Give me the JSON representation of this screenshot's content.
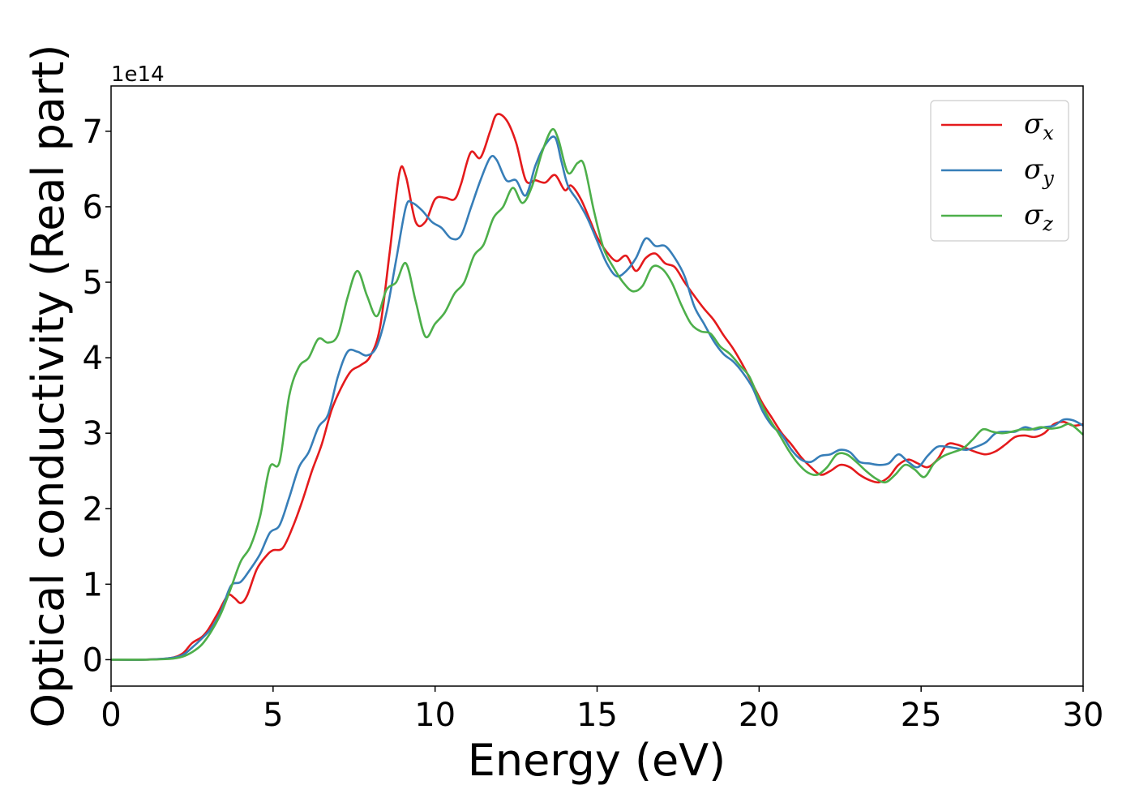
{
  "chart_data": {
    "type": "line",
    "xlabel": "Energy (eV)",
    "ylabel": "Optical conductivity (Real part)",
    "y_offset_label": "1e14",
    "xlim": [
      0,
      30
    ],
    "ylim": [
      -0.35,
      7.6
    ],
    "y_scale_factor": 100000000000000.0,
    "xticks": [
      0,
      5,
      10,
      15,
      20,
      25,
      30
    ],
    "yticks": [
      0,
      1,
      2,
      3,
      4,
      5,
      6,
      7
    ],
    "grid": false,
    "legend_position": "top-right",
    "series": [
      {
        "name": "σx",
        "symbol": "σ",
        "subscript": "x",
        "color": "#e41a1c",
        "points": [
          [
            0,
            0
          ],
          [
            1,
            0.0
          ],
          [
            1.8,
            0.02
          ],
          [
            2.2,
            0.08
          ],
          [
            2.5,
            0.22
          ],
          [
            2.8,
            0.3
          ],
          [
            3.0,
            0.4
          ],
          [
            3.3,
            0.62
          ],
          [
            3.6,
            0.85
          ],
          [
            3.8,
            0.82
          ],
          [
            4.0,
            0.75
          ],
          [
            4.2,
            0.85
          ],
          [
            4.5,
            1.2
          ],
          [
            4.8,
            1.38
          ],
          [
            5.0,
            1.45
          ],
          [
            5.3,
            1.48
          ],
          [
            5.6,
            1.75
          ],
          [
            5.9,
            2.1
          ],
          [
            6.2,
            2.5
          ],
          [
            6.5,
            2.85
          ],
          [
            6.8,
            3.3
          ],
          [
            7.1,
            3.6
          ],
          [
            7.4,
            3.82
          ],
          [
            7.7,
            3.9
          ],
          [
            8.0,
            4.02
          ],
          [
            8.3,
            4.4
          ],
          [
            8.6,
            5.4
          ],
          [
            8.9,
            6.45
          ],
          [
            9.1,
            6.4
          ],
          [
            9.4,
            5.8
          ],
          [
            9.7,
            5.8
          ],
          [
            10.0,
            6.1
          ],
          [
            10.3,
            6.12
          ],
          [
            10.6,
            6.1
          ],
          [
            10.8,
            6.3
          ],
          [
            11.1,
            6.72
          ],
          [
            11.4,
            6.65
          ],
          [
            11.7,
            7.0
          ],
          [
            11.9,
            7.22
          ],
          [
            12.2,
            7.15
          ],
          [
            12.5,
            6.85
          ],
          [
            12.8,
            6.35
          ],
          [
            13.1,
            6.35
          ],
          [
            13.4,
            6.32
          ],
          [
            13.7,
            6.42
          ],
          [
            14.0,
            6.22
          ],
          [
            14.2,
            6.28
          ],
          [
            14.5,
            6.1
          ],
          [
            14.8,
            5.8
          ],
          [
            15.0,
            5.6
          ],
          [
            15.3,
            5.4
          ],
          [
            15.6,
            5.28
          ],
          [
            15.9,
            5.35
          ],
          [
            16.2,
            5.15
          ],
          [
            16.5,
            5.32
          ],
          [
            16.8,
            5.38
          ],
          [
            17.1,
            5.25
          ],
          [
            17.4,
            5.2
          ],
          [
            17.7,
            5.0
          ],
          [
            18.0,
            4.82
          ],
          [
            18.3,
            4.65
          ],
          [
            18.6,
            4.5
          ],
          [
            18.9,
            4.3
          ],
          [
            19.2,
            4.12
          ],
          [
            19.5,
            3.9
          ],
          [
            19.8,
            3.65
          ],
          [
            20.1,
            3.4
          ],
          [
            20.4,
            3.2
          ],
          [
            20.7,
            3.0
          ],
          [
            21.0,
            2.85
          ],
          [
            21.3,
            2.68
          ],
          [
            21.6,
            2.55
          ],
          [
            21.9,
            2.45
          ],
          [
            22.2,
            2.5
          ],
          [
            22.5,
            2.58
          ],
          [
            22.8,
            2.55
          ],
          [
            23.1,
            2.45
          ],
          [
            23.4,
            2.38
          ],
          [
            23.7,
            2.35
          ],
          [
            24.0,
            2.42
          ],
          [
            24.3,
            2.58
          ],
          [
            24.6,
            2.65
          ],
          [
            24.9,
            2.6
          ],
          [
            25.2,
            2.55
          ],
          [
            25.5,
            2.65
          ],
          [
            25.8,
            2.85
          ],
          [
            26.1,
            2.85
          ],
          [
            26.4,
            2.8
          ],
          [
            26.7,
            2.75
          ],
          [
            27.0,
            2.72
          ],
          [
            27.3,
            2.76
          ],
          [
            27.6,
            2.85
          ],
          [
            27.9,
            2.95
          ],
          [
            28.2,
            2.97
          ],
          [
            28.5,
            2.95
          ],
          [
            28.8,
            3.0
          ],
          [
            29.1,
            3.12
          ],
          [
            29.4,
            3.15
          ],
          [
            29.7,
            3.1
          ],
          [
            30,
            3.12
          ]
        ]
      },
      {
        "name": "σy",
        "symbol": "σ",
        "subscript": "y",
        "color": "#377eb8",
        "points": [
          [
            0,
            0
          ],
          [
            1,
            0.0
          ],
          [
            1.8,
            0.02
          ],
          [
            2.2,
            0.06
          ],
          [
            2.5,
            0.16
          ],
          [
            2.8,
            0.28
          ],
          [
            3.1,
            0.42
          ],
          [
            3.4,
            0.65
          ],
          [
            3.7,
            0.98
          ],
          [
            4.0,
            1.03
          ],
          [
            4.3,
            1.2
          ],
          [
            4.6,
            1.4
          ],
          [
            4.9,
            1.68
          ],
          [
            5.2,
            1.78
          ],
          [
            5.5,
            2.15
          ],
          [
            5.8,
            2.55
          ],
          [
            6.1,
            2.75
          ],
          [
            6.4,
            3.08
          ],
          [
            6.7,
            3.25
          ],
          [
            7.0,
            3.75
          ],
          [
            7.3,
            4.08
          ],
          [
            7.6,
            4.08
          ],
          [
            7.9,
            4.03
          ],
          [
            8.2,
            4.15
          ],
          [
            8.5,
            4.6
          ],
          [
            8.8,
            5.3
          ],
          [
            9.1,
            6.0
          ],
          [
            9.3,
            6.05
          ],
          [
            9.6,
            5.95
          ],
          [
            9.9,
            5.8
          ],
          [
            10.2,
            5.72
          ],
          [
            10.5,
            5.58
          ],
          [
            10.8,
            5.62
          ],
          [
            11.1,
            5.98
          ],
          [
            11.4,
            6.35
          ],
          [
            11.7,
            6.65
          ],
          [
            11.9,
            6.62
          ],
          [
            12.2,
            6.35
          ],
          [
            12.5,
            6.35
          ],
          [
            12.8,
            6.15
          ],
          [
            13.1,
            6.55
          ],
          [
            13.4,
            6.82
          ],
          [
            13.7,
            6.92
          ],
          [
            13.9,
            6.6
          ],
          [
            14.1,
            6.28
          ],
          [
            14.4,
            6.08
          ],
          [
            14.7,
            5.85
          ],
          [
            15.0,
            5.55
          ],
          [
            15.3,
            5.25
          ],
          [
            15.6,
            5.08
          ],
          [
            15.9,
            5.15
          ],
          [
            16.2,
            5.32
          ],
          [
            16.5,
            5.58
          ],
          [
            16.8,
            5.48
          ],
          [
            17.1,
            5.48
          ],
          [
            17.4,
            5.32
          ],
          [
            17.7,
            5.08
          ],
          [
            18.0,
            4.68
          ],
          [
            18.3,
            4.45
          ],
          [
            18.6,
            4.22
          ],
          [
            18.9,
            4.05
          ],
          [
            19.2,
            3.95
          ],
          [
            19.5,
            3.8
          ],
          [
            19.8,
            3.6
          ],
          [
            20.1,
            3.3
          ],
          [
            20.4,
            3.1
          ],
          [
            20.7,
            2.98
          ],
          [
            21.0,
            2.78
          ],
          [
            21.3,
            2.65
          ],
          [
            21.6,
            2.62
          ],
          [
            21.9,
            2.7
          ],
          [
            22.2,
            2.72
          ],
          [
            22.5,
            2.78
          ],
          [
            22.8,
            2.75
          ],
          [
            23.1,
            2.62
          ],
          [
            23.4,
            2.6
          ],
          [
            23.7,
            2.58
          ],
          [
            24.0,
            2.6
          ],
          [
            24.3,
            2.72
          ],
          [
            24.6,
            2.62
          ],
          [
            24.9,
            2.55
          ],
          [
            25.2,
            2.7
          ],
          [
            25.5,
            2.82
          ],
          [
            25.8,
            2.82
          ],
          [
            26.1,
            2.8
          ],
          [
            26.4,
            2.78
          ],
          [
            26.7,
            2.82
          ],
          [
            27.0,
            2.88
          ],
          [
            27.3,
            3.0
          ],
          [
            27.6,
            3.02
          ],
          [
            27.9,
            3.02
          ],
          [
            28.2,
            3.08
          ],
          [
            28.5,
            3.05
          ],
          [
            28.8,
            3.08
          ],
          [
            29.1,
            3.1
          ],
          [
            29.4,
            3.18
          ],
          [
            29.7,
            3.17
          ],
          [
            30,
            3.1
          ]
        ]
      },
      {
        "name": "σz",
        "symbol": "σ",
        "subscript": "z",
        "color": "#4daf4a",
        "points": [
          [
            0,
            0
          ],
          [
            1,
            0.0
          ],
          [
            1.8,
            0.01
          ],
          [
            2.2,
            0.04
          ],
          [
            2.5,
            0.1
          ],
          [
            2.8,
            0.2
          ],
          [
            3.1,
            0.38
          ],
          [
            3.4,
            0.62
          ],
          [
            3.7,
            0.95
          ],
          [
            4.0,
            1.3
          ],
          [
            4.3,
            1.5
          ],
          [
            4.6,
            1.9
          ],
          [
            4.9,
            2.55
          ],
          [
            5.2,
            2.62
          ],
          [
            5.5,
            3.5
          ],
          [
            5.8,
            3.88
          ],
          [
            6.1,
            4.0
          ],
          [
            6.4,
            4.25
          ],
          [
            6.7,
            4.2
          ],
          [
            7.0,
            4.3
          ],
          [
            7.3,
            4.8
          ],
          [
            7.6,
            5.15
          ],
          [
            7.9,
            4.82
          ],
          [
            8.2,
            4.55
          ],
          [
            8.5,
            4.9
          ],
          [
            8.8,
            5.0
          ],
          [
            9.1,
            5.25
          ],
          [
            9.4,
            4.75
          ],
          [
            9.7,
            4.28
          ],
          [
            10.0,
            4.45
          ],
          [
            10.3,
            4.6
          ],
          [
            10.6,
            4.85
          ],
          [
            10.9,
            5.0
          ],
          [
            11.2,
            5.35
          ],
          [
            11.5,
            5.5
          ],
          [
            11.8,
            5.85
          ],
          [
            12.1,
            6.0
          ],
          [
            12.4,
            6.25
          ],
          [
            12.7,
            6.05
          ],
          [
            13.0,
            6.28
          ],
          [
            13.3,
            6.72
          ],
          [
            13.6,
            7.02
          ],
          [
            13.8,
            6.9
          ],
          [
            14.1,
            6.45
          ],
          [
            14.4,
            6.58
          ],
          [
            14.6,
            6.55
          ],
          [
            14.9,
            5.95
          ],
          [
            15.2,
            5.45
          ],
          [
            15.5,
            5.2
          ],
          [
            15.8,
            5.0
          ],
          [
            16.1,
            4.88
          ],
          [
            16.4,
            4.95
          ],
          [
            16.7,
            5.2
          ],
          [
            17.0,
            5.18
          ],
          [
            17.3,
            5.0
          ],
          [
            17.6,
            4.7
          ],
          [
            17.9,
            4.45
          ],
          [
            18.2,
            4.35
          ],
          [
            18.5,
            4.32
          ],
          [
            18.8,
            4.15
          ],
          [
            19.1,
            4.05
          ],
          [
            19.4,
            3.9
          ],
          [
            19.7,
            3.75
          ],
          [
            20.0,
            3.45
          ],
          [
            20.3,
            3.2
          ],
          [
            20.6,
            3.0
          ],
          [
            20.9,
            2.78
          ],
          [
            21.2,
            2.6
          ],
          [
            21.5,
            2.48
          ],
          [
            21.8,
            2.45
          ],
          [
            22.1,
            2.55
          ],
          [
            22.4,
            2.72
          ],
          [
            22.7,
            2.72
          ],
          [
            23.0,
            2.62
          ],
          [
            23.3,
            2.5
          ],
          [
            23.6,
            2.4
          ],
          [
            23.9,
            2.35
          ],
          [
            24.2,
            2.45
          ],
          [
            24.5,
            2.58
          ],
          [
            24.8,
            2.52
          ],
          [
            25.1,
            2.42
          ],
          [
            25.4,
            2.6
          ],
          [
            25.7,
            2.7
          ],
          [
            26.0,
            2.75
          ],
          [
            26.3,
            2.8
          ],
          [
            26.6,
            2.92
          ],
          [
            26.9,
            3.05
          ],
          [
            27.2,
            3.02
          ],
          [
            27.5,
            3.0
          ],
          [
            27.8,
            3.02
          ],
          [
            28.1,
            3.05
          ],
          [
            28.4,
            3.05
          ],
          [
            28.7,
            3.08
          ],
          [
            29.0,
            3.06
          ],
          [
            29.3,
            3.08
          ],
          [
            29.6,
            3.12
          ],
          [
            30,
            2.98
          ]
        ]
      }
    ]
  }
}
